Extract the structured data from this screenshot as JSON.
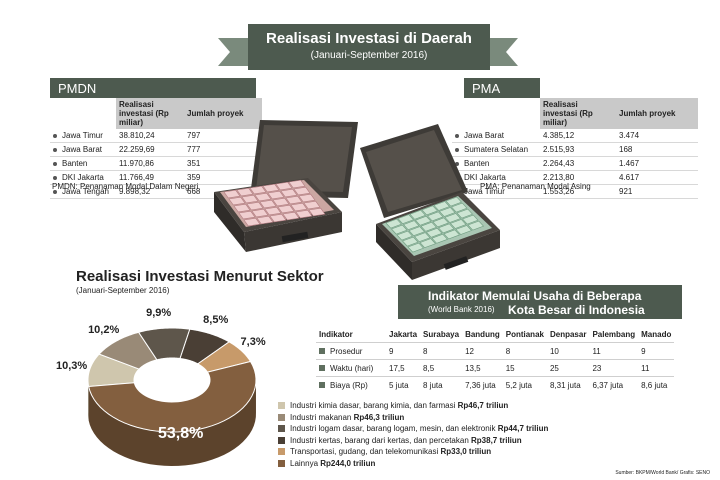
{
  "header": {
    "title": "Realisasi Investasi di Daerah",
    "subtitle": "(Januari-September 2016)"
  },
  "pmdn": {
    "tag": "PMDN",
    "col_value": "Realisasi investasi (Rp miliar)",
    "col_count": "Jumlah proyek",
    "rows": [
      {
        "region": "Jawa Timur",
        "value": "38.810,24",
        "count": "797"
      },
      {
        "region": "Jawa Barat",
        "value": "22.259,69",
        "count": "777"
      },
      {
        "region": "Banten",
        "value": "11.970,86",
        "count": "351"
      },
      {
        "region": "DKI Jakarta",
        "value": "11.766,49",
        "count": "359"
      },
      {
        "region": "Jawa Tengah",
        "value": "9.898,32",
        "count": "668"
      }
    ],
    "note": "PMDN: Penanaman Modal Dalam Negeri"
  },
  "pma": {
    "tag": "PMA",
    "col_value": "Realisasi investasi (Rp miliar)",
    "col_count": "Jumlah proyek",
    "rows": [
      {
        "region": "Jawa Barat",
        "value": "4.385,12",
        "count": "3.474"
      },
      {
        "region": "Sumatera Selatan",
        "value": "2.515,93",
        "count": "168"
      },
      {
        "region": "Banten",
        "value": "2.264,43",
        "count": "1.467"
      },
      {
        "region": "DKI Jakarta",
        "value": "2.213,80",
        "count": "4.617"
      },
      {
        "region": "Jawa Timur",
        "value": "1.553,26",
        "count": "921"
      }
    ],
    "note": "PMA: Penanaman Modal Asing"
  },
  "chart_data": {
    "type": "pie",
    "title": "Realisasi Investasi Menurut Sektor",
    "subtitle": "(Januari-September 2016)",
    "labels": [
      "Industri kimia dasar, barang kimia, dan farmasi",
      "Industri makanan",
      "Industri logam dasar, barang logam, mesin, dan elektronik",
      "Industri kertas, barang dari kertas, dan percetakan",
      "Transportasi, gudang, dan telekomunikasi",
      "Lainnya"
    ],
    "amounts": [
      "Rp46,7 triliun",
      "Rp46,3 triliun",
      "Rp44,7 triliun",
      "Rp38,7 triliun",
      "Rp33,0 triliun",
      "Rp244,0 triliun"
    ],
    "values": [
      10.3,
      10.2,
      9.9,
      8.5,
      7.3,
      53.8
    ],
    "percent_labels": [
      "10,3%",
      "10,2%",
      "9,9%",
      "8,5%",
      "7,3%",
      "53,8%"
    ],
    "colors": [
      "#cfc6ad",
      "#998a77",
      "#5e564b",
      "#4a3f35",
      "#c79a6a",
      "#835f3f"
    ],
    "legend_position": "bottom-right"
  },
  "indikator": {
    "title_line1": "Indikator Memulai Usaha di Beberapa",
    "title_source": "(World Bank 2016)",
    "title_line2": "Kota Besar di Indonesia",
    "col_head": "Indikator",
    "cities": [
      "Jakarta",
      "Surabaya",
      "Bandung",
      "Pontianak",
      "Denpasar",
      "Palembang",
      "Manado"
    ],
    "rows": [
      {
        "name": "Prosedur",
        "values": [
          "9",
          "8",
          "12",
          "8",
          "10",
          "11",
          "9"
        ]
      },
      {
        "name": "Waktu (hari)",
        "values": [
          "17,5",
          "8,5",
          "13,5",
          "15",
          "25",
          "23",
          "11"
        ]
      },
      {
        "name": "Biaya (Rp)",
        "values": [
          "5 juta",
          "8 juta",
          "7,36 juta",
          "5,2 juta",
          "8,31 juta",
          "6,37 juta",
          "8,6 juta"
        ]
      }
    ]
  },
  "source": "Sumber: BKPM/World Bank/ Grafis: SENO"
}
